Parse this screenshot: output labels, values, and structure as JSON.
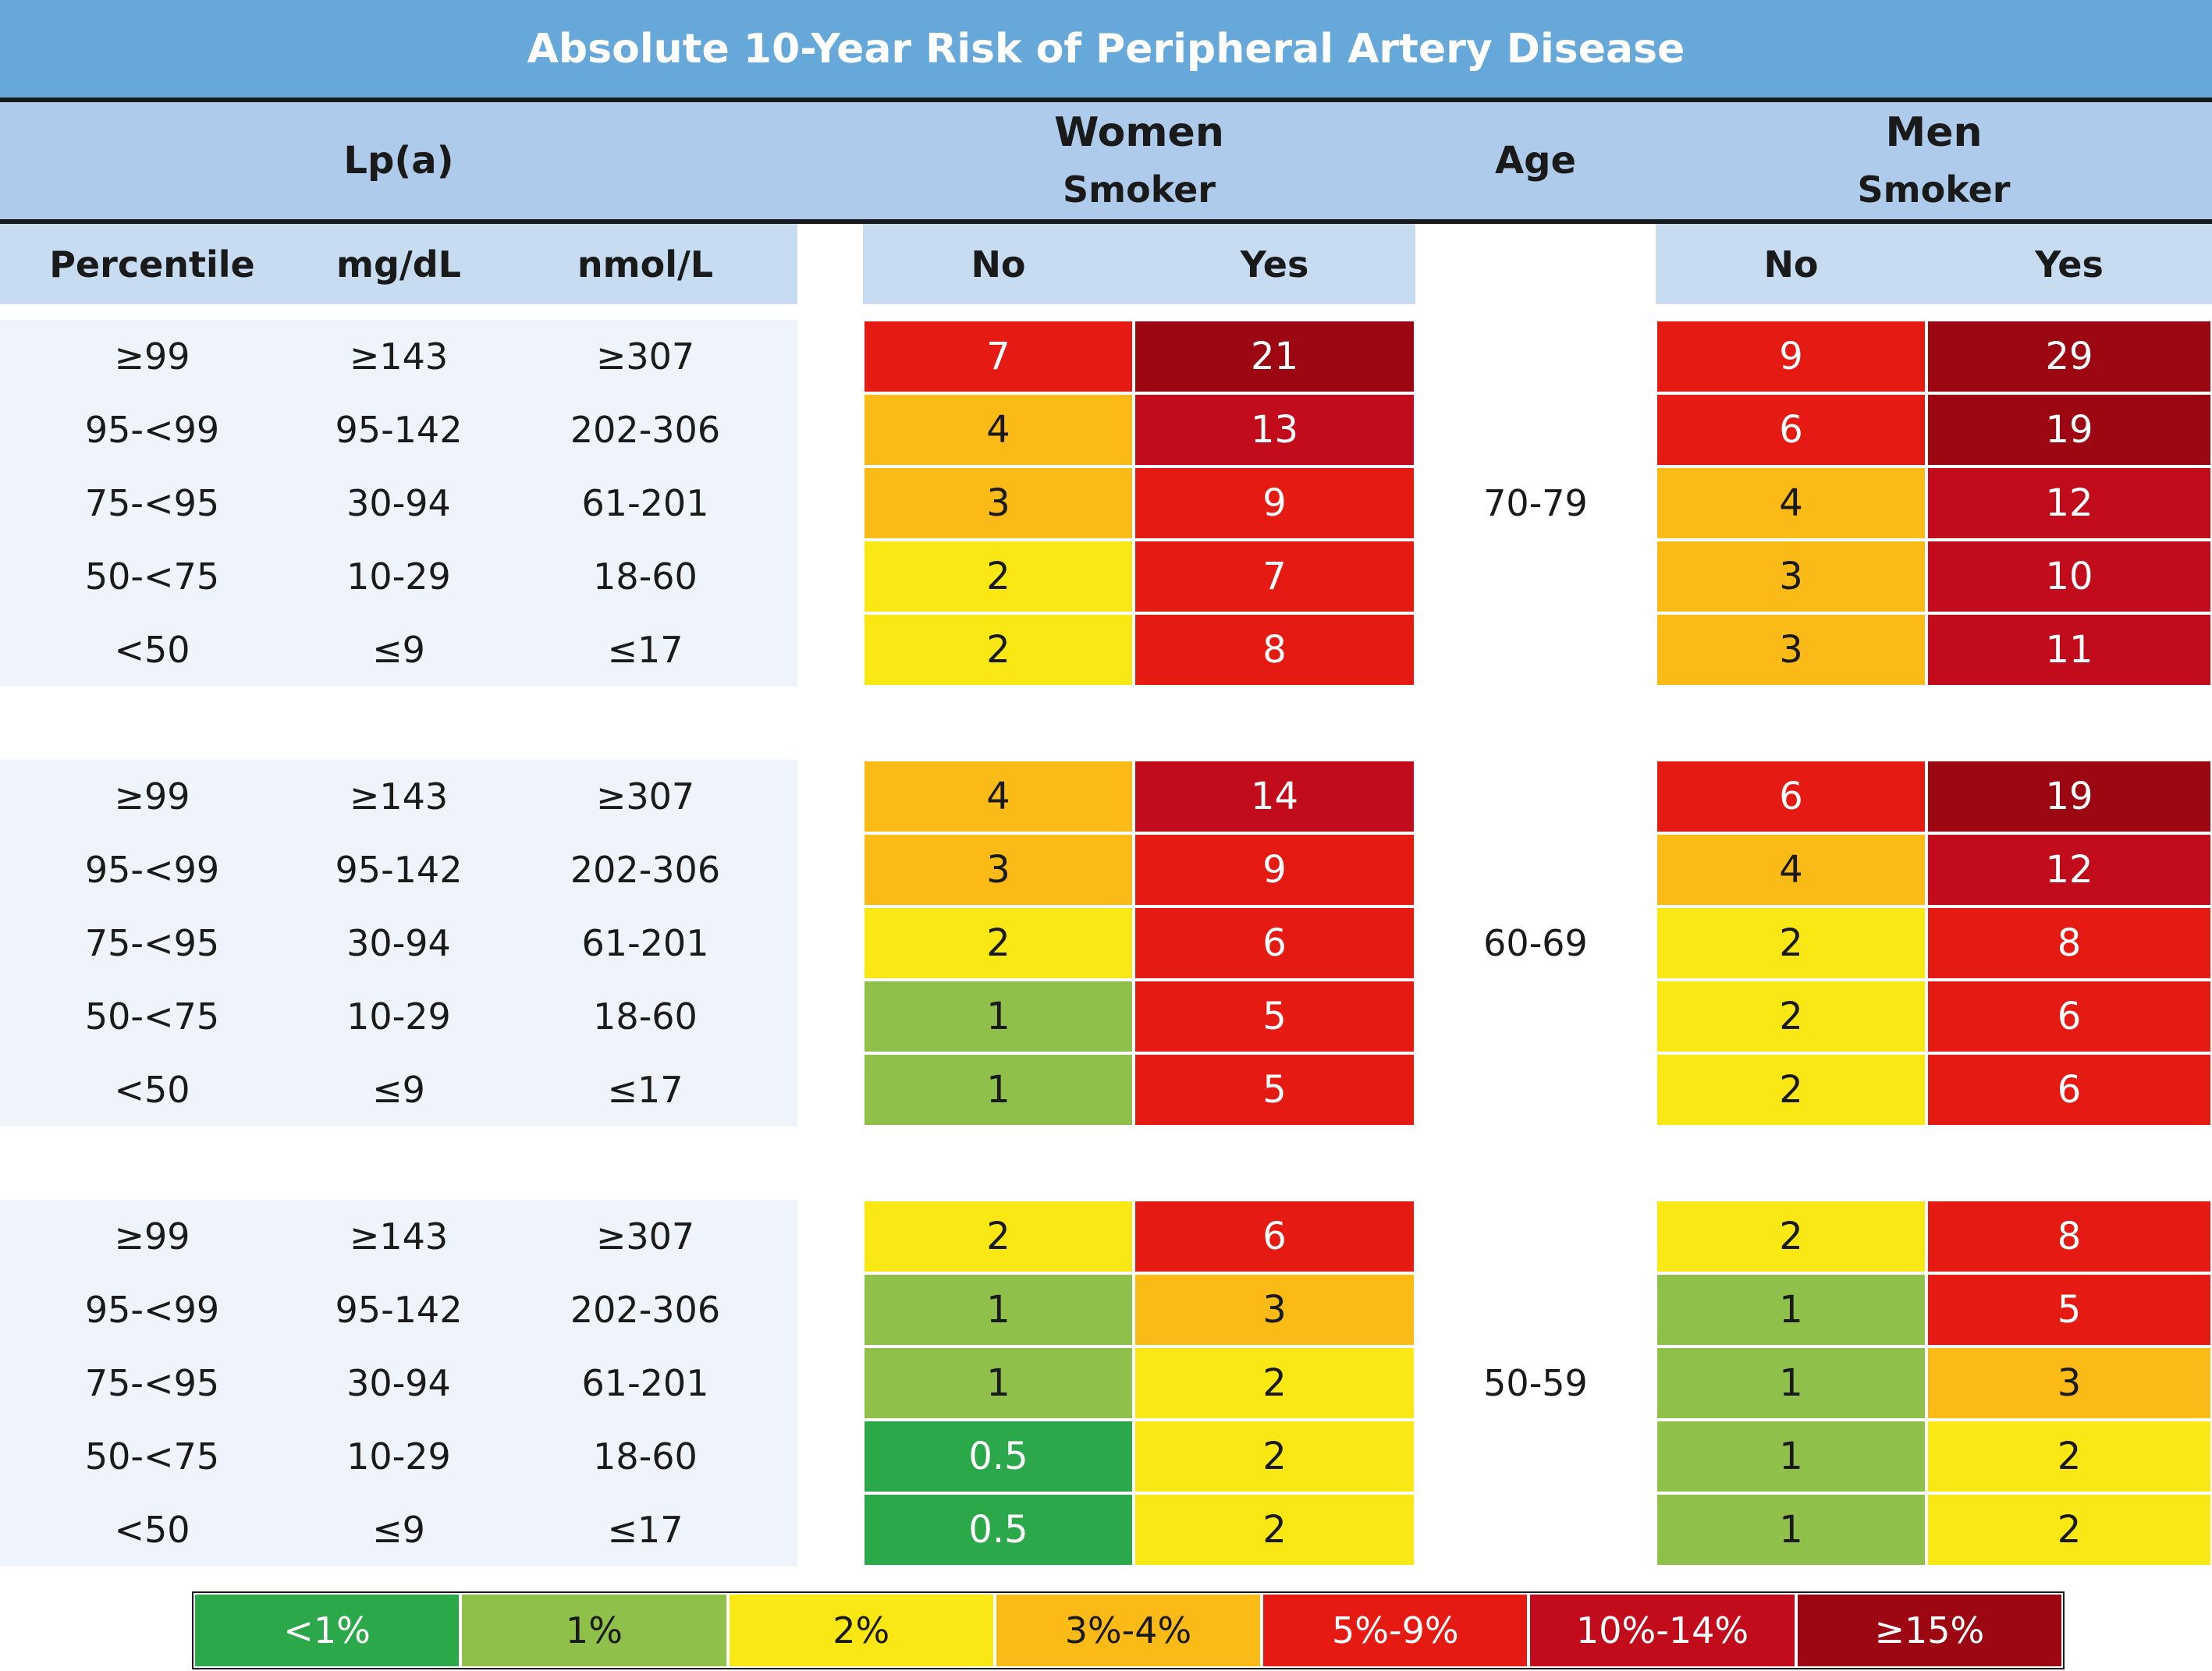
{
  "title": "Absolute 10-Year Risk of Peripheral Artery Disease",
  "headers": {
    "lpa": "Lp(a)",
    "women": "Women",
    "men": "Men",
    "smoker": "Smoker",
    "age": "Age",
    "percentile": "Percentile",
    "mgdl": "mg/dL",
    "nmol": "nmol/L",
    "no": "No",
    "yes": "Yes"
  },
  "colors": {
    "lt1": "#2aa84a",
    "p1": "#8fc04a",
    "p2": "#f9e814",
    "p3_4": "#fbbb17",
    "p5_9": "#e51a12",
    "p10_14": "#c30c1b",
    "ge15": "#9c0712"
  },
  "legend": [
    {
      "label": "<1%",
      "color_key": "lt1"
    },
    {
      "label": "1%",
      "color_key": "p1"
    },
    {
      "label": "2%",
      "color_key": "p2"
    },
    {
      "label": "3%-4%",
      "color_key": "p3_4"
    },
    {
      "label": "5%-9%",
      "color_key": "p5_9"
    },
    {
      "label": "10%-14%",
      "color_key": "p10_14"
    },
    {
      "label": "≥15%",
      "color_key": "ge15"
    }
  ],
  "chart_data": {
    "type": "table",
    "lpa_rows": [
      {
        "percentile": "≥99",
        "mgdl": "≥143",
        "nmol": "≥307"
      },
      {
        "percentile": "95-<99",
        "mgdl": "95-142",
        "nmol": "202-306"
      },
      {
        "percentile": "75-<95",
        "mgdl": "30-94",
        "nmol": "61-201"
      },
      {
        "percentile": "50-<75",
        "mgdl": "10-29",
        "nmol": "18-60"
      },
      {
        "percentile": "<50",
        "mgdl": "≤9",
        "nmol": "≤17"
      }
    ],
    "age_groups": [
      {
        "age": "70-79",
        "women_no": [
          "7",
          "4",
          "3",
          "2",
          "2"
        ],
        "women_yes": [
          "21",
          "13",
          "9",
          "7",
          "8"
        ],
        "men_no": [
          "9",
          "6",
          "4",
          "3",
          "3"
        ],
        "men_yes": [
          "29",
          "19",
          "12",
          "10",
          "11"
        ]
      },
      {
        "age": "60-69",
        "women_no": [
          "4",
          "3",
          "2",
          "1",
          "1"
        ],
        "women_yes": [
          "14",
          "9",
          "6",
          "5",
          "5"
        ],
        "men_no": [
          "6",
          "4",
          "2",
          "2",
          "2"
        ],
        "men_yes": [
          "19",
          "12",
          "8",
          "6",
          "6"
        ]
      },
      {
        "age": "50-59",
        "women_no": [
          "2",
          "1",
          "1",
          "0.5",
          "0.5"
        ],
        "women_yes": [
          "6",
          "3",
          "2",
          "2",
          "2"
        ],
        "men_no": [
          "2",
          "1",
          "1",
          "1",
          "1"
        ],
        "men_yes": [
          "8",
          "5",
          "3",
          "2",
          "2"
        ]
      }
    ]
  }
}
